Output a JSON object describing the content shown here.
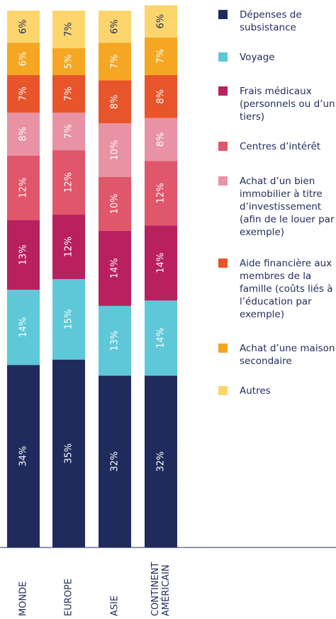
{
  "chart_data": {
    "type": "stacked_bar",
    "categories": [
      "MONDE",
      "EUROPE",
      "ASIE",
      "CONTINENT AMÉRICAIN"
    ],
    "ylim": [
      0,
      100
    ],
    "series": [
      {
        "name": "Dépenses de subsistance",
        "color": "#1f2b5c",
        "values": [
          34,
          35,
          32,
          32
        ],
        "value_labels": [
          "34%",
          "35%",
          "32%",
          "32%"
        ]
      },
      {
        "name": "Voyage",
        "color": "#5ec8d8",
        "values": [
          14,
          15,
          13,
          14
        ],
        "value_labels": [
          "14%",
          "15%",
          "13%",
          "14%"
        ]
      },
      {
        "name": "Frais médicaux (personnels ou d’un tiers)",
        "color": "#b8205f",
        "values": [
          13,
          12,
          14,
          14
        ],
        "value_labels": [
          "13%",
          "12%",
          "14%",
          "14%"
        ]
      },
      {
        "name": "Centres d’intérêt",
        "color": "#e0566a",
        "values": [
          12,
          12,
          10,
          12
        ],
        "value_labels": [
          "12%",
          "12%",
          "10%",
          "12%"
        ]
      },
      {
        "name": "Achat d’un bien immobilier à titre d’investissement (afin de le louer par exemple)",
        "color": "#e892a3",
        "values": [
          8,
          7,
          10,
          8
        ],
        "value_labels": [
          "8%",
          "7%",
          "10%",
          "8%"
        ]
      },
      {
        "name": "Aide financière aux membres de la famille (coûts liés à l’éducation par exemple)",
        "color": "#e8552b",
        "values": [
          7,
          7,
          8,
          8
        ],
        "value_labels": [
          "7%",
          "7%",
          "8%",
          "8%"
        ]
      },
      {
        "name": "Achat d’une maison secondaire",
        "color": "#f5a623",
        "values": [
          6,
          5,
          7,
          7
        ],
        "value_labels": [
          "6%",
          "5%",
          "7%",
          "7%"
        ]
      },
      {
        "name": "Autres",
        "color": "#fdd56d",
        "values": [
          6,
          7,
          6,
          6
        ],
        "value_labels": [
          "6%",
          "7%",
          "6%",
          "6%"
        ]
      }
    ]
  }
}
